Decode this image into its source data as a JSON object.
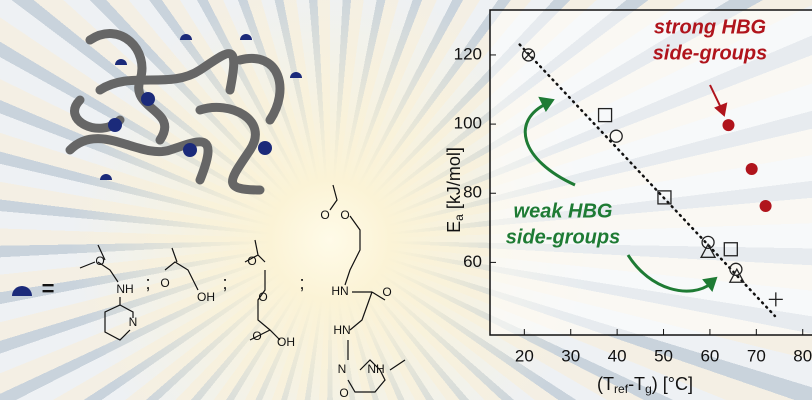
{
  "chart_data": {
    "type": "scatter",
    "xlabel": [
      "(T",
      "ref",
      "-T",
      "g",
      ")  [°C]"
    ],
    "ylabel": [
      "E",
      "a",
      " [kJ/mol]"
    ],
    "xlim": [
      12.6,
      82
    ],
    "ylim": [
      39,
      133
    ],
    "xticks": [
      20,
      30,
      40,
      50,
      60,
      70,
      80
    ],
    "yticks": [
      60,
      80,
      100,
      120
    ],
    "fit": {
      "x": [
        19,
        74
      ],
      "values": [
        123,
        44.5
      ],
      "style": "dotted",
      "color": "#111111"
    },
    "series": [
      {
        "marker": "circle-x",
        "color": "#222222",
        "x": [
          20.9
        ],
        "values": [
          120
        ]
      },
      {
        "marker": "square",
        "color": "#222222",
        "x": [
          37.4,
          50.2,
          64.5
        ],
        "values": [
          102.6,
          78.8,
          63.8
        ]
      },
      {
        "marker": "circle",
        "color": "#222222",
        "x": [
          39.8,
          59.6,
          65.6
        ],
        "values": [
          96.5,
          65.8,
          58
        ]
      },
      {
        "marker": "triangle",
        "color": "#222222",
        "x": [
          59.6,
          65.8
        ],
        "values": [
          63.2,
          56
        ]
      },
      {
        "marker": "plus",
        "color": "#222222",
        "x": [
          74.2
        ],
        "values": [
          49.3
        ]
      },
      {
        "marker": "filled-circle",
        "color": "#b0141c",
        "x": [
          64,
          69,
          72
        ],
        "values": [
          99.7,
          87,
          76.3
        ]
      }
    ],
    "annotations": [
      {
        "lines": [
          "strong HBG",
          "side-groups"
        ],
        "color": "#b0141c"
      },
      {
        "lines": [
          "weak HBG",
          "side-groups"
        ],
        "color": "#1e7b34"
      }
    ]
  },
  "structures": {
    "equals": "=",
    "separators": [
      ";",
      ";",
      ";"
    ],
    "atoms": [
      "O",
      "NH",
      "N",
      "O",
      "OH",
      "O",
      "O",
      "O",
      "OH",
      "O",
      "O",
      "HN",
      "O",
      "HN",
      "N",
      "NH",
      "O"
    ]
  }
}
